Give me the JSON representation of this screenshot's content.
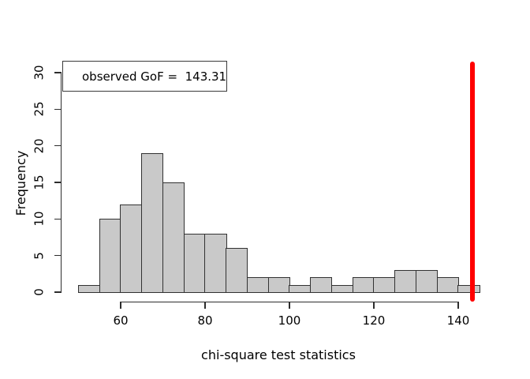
{
  "figure": {
    "background": "#ffffff",
    "title": ""
  },
  "chart_data": {
    "type": "bar",
    "subtype": "histogram",
    "title": "",
    "xlabel": "chi-square test statistics",
    "ylabel": "Frequency",
    "bin_edges": [
      50,
      55,
      60,
      65,
      70,
      75,
      80,
      85,
      90,
      95,
      100,
      105,
      110,
      115,
      120,
      125,
      130,
      135,
      140,
      145
    ],
    "counts": [
      1,
      10,
      12,
      19,
      15,
      8,
      8,
      6,
      2,
      2,
      1,
      2,
      1,
      2,
      2,
      3,
      3,
      2,
      1
    ],
    "x_ticks": [
      60,
      80,
      100,
      120,
      140
    ],
    "y_ticks": [
      0,
      5,
      10,
      15,
      20,
      25,
      30
    ],
    "xlim": [
      46.2,
      148.8
    ],
    "ylim": [
      0,
      30
    ],
    "grid": false,
    "legend_position": "topleft",
    "bar_fill": "#c9c9c9",
    "bar_border": "#323232",
    "axis_color": "#2d2d2d",
    "annotation_line": {
      "value": 143.31,
      "color": "#ff0000"
    },
    "legend": {
      "label": "observed GoF =  143.31"
    }
  }
}
